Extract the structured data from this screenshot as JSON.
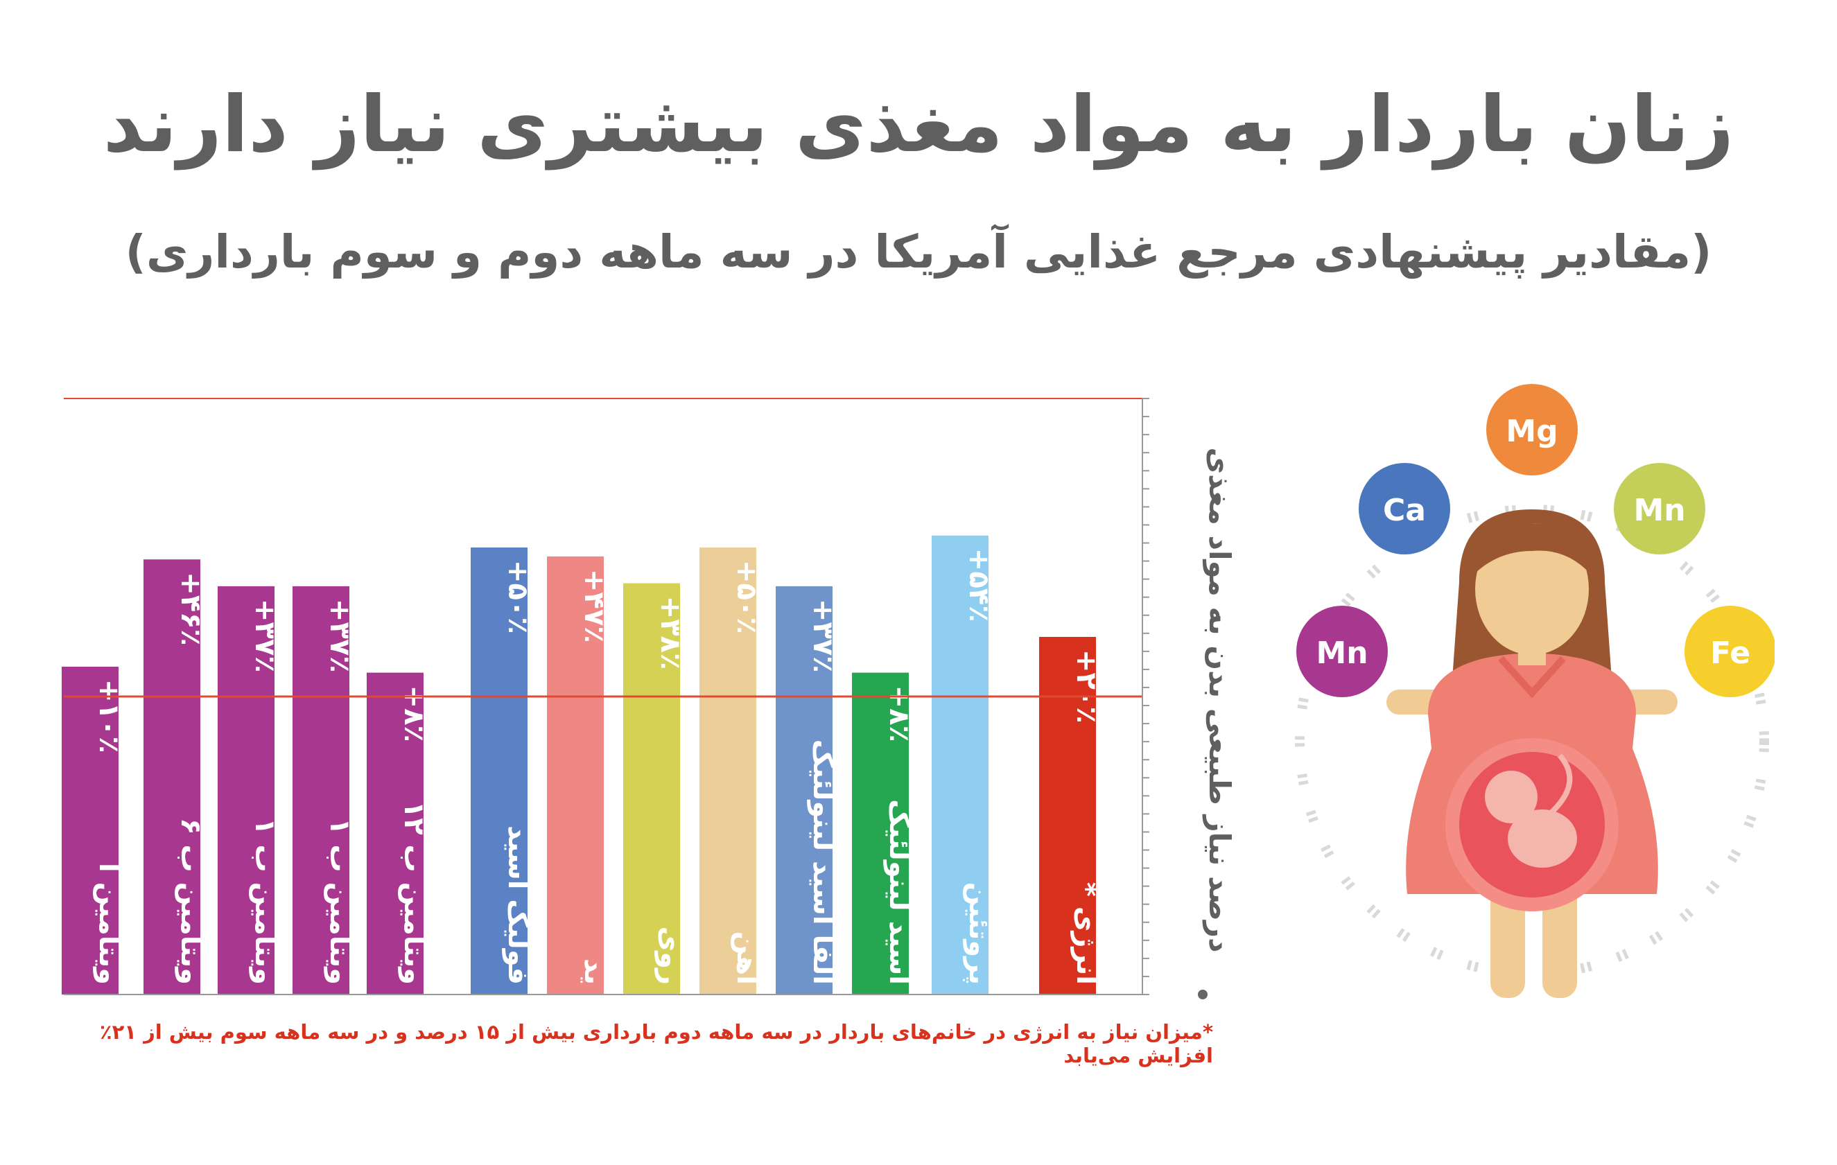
{
  "header": {
    "title": "زنان باردار به مواد مغذی بیشتری نیاز دارند",
    "subtitle": "(مقادیر پیشنهادی مرجع غذایی آمریکا در سه ماهه دوم و سوم بارداری)"
  },
  "footnote": "*میزان نیاز به انرژی در خانم‌های باردار در سه ماهه دوم بارداری بیش از ۱۵ درصد و در سه ماهه سوم بیش از ۲۱٪ افزایش می‌یابد",
  "chart_data": {
    "type": "bar",
    "ylabel": "درصد نیاز طبیعی بدن به مواد مغذی",
    "baseline_percent": 0,
    "max_percent": 100,
    "ticks_count": 33,
    "bars": [
      {
        "label": "ویتامین آ",
        "display": "+۱۰٪",
        "value": 10,
        "color": "#a8378f"
      },
      {
        "label": "ویتامین ب ۶",
        "display": "+۴۶٪",
        "value": 46,
        "color": "#a8378f"
      },
      {
        "label": "ویتامین ب ۱",
        "display": "+۳۷٪",
        "value": 37,
        "color": "#a8378f"
      },
      {
        "label": "ویتامین ب ۱",
        "display": "+۳۷٪",
        "value": 37,
        "color": "#a8378f"
      },
      {
        "label": "ویتامین ب ۱۲",
        "display": "+۸٪",
        "value": 8,
        "color": "#a8378f"
      },
      {
        "label": "فولیک اسید",
        "display": "+۵۰٪",
        "value": 50,
        "color": "#5b82c4"
      },
      {
        "label": "ید",
        "display": "+۴۷٪",
        "value": 47,
        "color": "#ef8885"
      },
      {
        "label": "روی",
        "display": "+۳۸٪",
        "value": 38,
        "color": "#d4d155"
      },
      {
        "label": "آهن",
        "display": "+۵۰٪",
        "value": 50,
        "color": "#ebce98"
      },
      {
        "label": "آلفا اسید لینولئیک",
        "display": "+۳۷٪",
        "value": 37,
        "color": "#6f94cc"
      },
      {
        "label": "اسید لینولئیک",
        "display": "+۸٪",
        "value": 8,
        "color": "#26a650"
      },
      {
        "label": "پروتئین",
        "display": "+۵۴٪",
        "value": 54,
        "color": "#8fcdf1"
      },
      {
        "label": "* انرژی",
        "display": "+۲۰٪",
        "value": 20,
        "color": "#d8321e"
      }
    ]
  },
  "illustration": {
    "nodes": [
      {
        "label": "Mg",
        "color": "#ef8a3d"
      },
      {
        "label": "Ca",
        "color": "#4a76bd"
      },
      {
        "label": "Mn",
        "color": "#c4cf5a"
      },
      {
        "label": "Mn",
        "color": "#a8378f"
      },
      {
        "label": "Fe",
        "color": "#f6cf2c"
      }
    ],
    "colors": {
      "hair": "#9a5631",
      "skin": "#f0cb94",
      "dress": "#ef7f73",
      "womb": "#e9535c",
      "baby": "#f4b5ad"
    }
  }
}
